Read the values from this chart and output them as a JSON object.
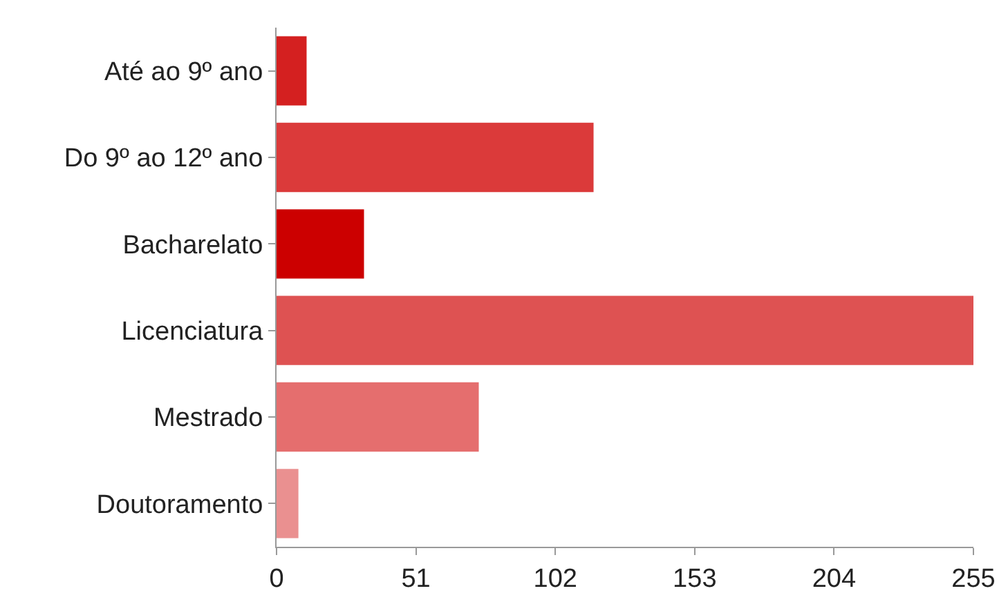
{
  "chart_data": {
    "type": "bar",
    "orientation": "horizontal",
    "categories": [
      "Até ao 9º ano",
      "Do 9º ao 12º ano",
      "Bacharelato",
      "Licenciatura",
      "Mestrado",
      "Doutoramento"
    ],
    "values": [
      11,
      116,
      32,
      255,
      74,
      8
    ],
    "colors": [
      "#d42020",
      "#db3a3a",
      "#cc0000",
      "#de5252",
      "#e56e6e",
      "#ea9090"
    ],
    "xlim": [
      0,
      255
    ],
    "xticks": [
      0,
      51,
      102,
      153,
      204,
      255
    ],
    "grid": false
  }
}
